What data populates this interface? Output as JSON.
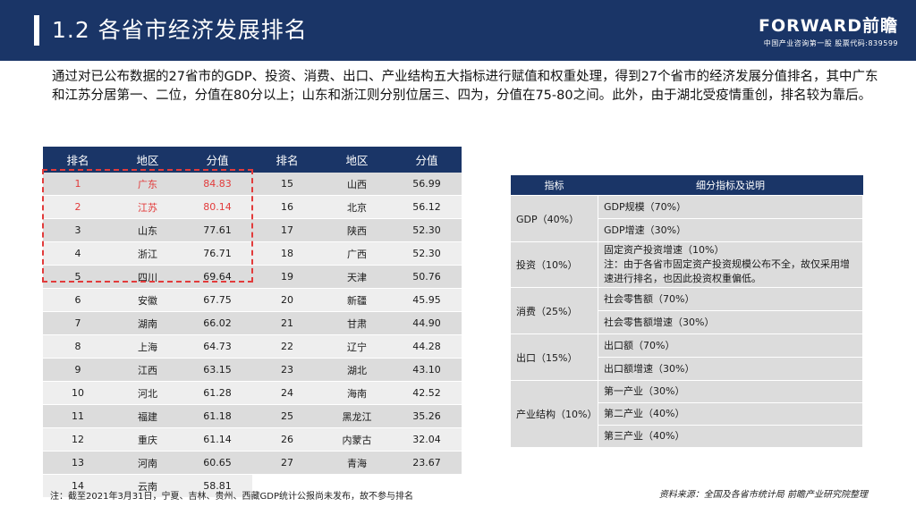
{
  "header": {
    "title": "1.2  各省市经济发展排名",
    "logo_main": "FORWARD前瞻",
    "logo_sub": "中国产业咨询第一股  股票代码:839599"
  },
  "intro": "通过对已公布数据的27省市的GDP、投资、消费、出口、产业结构五大指标进行赋值和权重处理，得到27个省市的经济发展分值排名，其中广东和江苏分居第一、二位，分值在80分以上；山东和浙江则分别位居三、四为，分值在75-80之间。此外，由于湖北受疫情重创，排名较为靠后。",
  "ranking": {
    "headers": [
      "排名",
      "地区",
      "分值",
      "排名",
      "地区",
      "分值"
    ],
    "rows": [
      [
        "1",
        "广东",
        "84.83",
        "15",
        "山西",
        "56.99"
      ],
      [
        "2",
        "江苏",
        "80.14",
        "16",
        "北京",
        "56.12"
      ],
      [
        "3",
        "山东",
        "77.61",
        "17",
        "陕西",
        "52.30"
      ],
      [
        "4",
        "浙江",
        "76.71",
        "18",
        "广西",
        "52.30"
      ],
      [
        "5",
        "四川",
        "69.64",
        "19",
        "天津",
        "50.76"
      ],
      [
        "6",
        "安徽",
        "67.75",
        "20",
        "新疆",
        "45.95"
      ],
      [
        "7",
        "湖南",
        "66.02",
        "21",
        "甘肃",
        "44.90"
      ],
      [
        "8",
        "上海",
        "64.73",
        "22",
        "辽宁",
        "44.28"
      ],
      [
        "9",
        "江西",
        "63.15",
        "23",
        "湖北",
        "43.10"
      ],
      [
        "10",
        "河北",
        "61.28",
        "24",
        "海南",
        "42.52"
      ],
      [
        "11",
        "福建",
        "61.18",
        "25",
        "黑龙江",
        "35.26"
      ],
      [
        "12",
        "重庆",
        "61.14",
        "26",
        "内蒙古",
        "32.04"
      ],
      [
        "13",
        "河南",
        "60.65",
        "27",
        "青海",
        "23.67"
      ],
      [
        "14",
        "云南",
        "58.81",
        "",
        "",
        ""
      ]
    ]
  },
  "indicators": {
    "headers": [
      "指标",
      "细分指标及说明"
    ],
    "gdp": {
      "cat": "GDP（40%）",
      "d1": "GDP规模（70%）",
      "d2": "GDP增速（30%）"
    },
    "invest": {
      "cat": "投资（10%）",
      "d1": "固定资产投资增速（10%）",
      "d2": "注：由于各省市固定资产投资规模公布不全，故仅采用增速进行排名，也因此投资权重偏低。"
    },
    "consume": {
      "cat": "消费（25%）",
      "d1": "社会零售额（70%）",
      "d2": "社会零售额增速（30%）"
    },
    "export": {
      "cat": "出口（15%）",
      "d1": "出口额（70%）",
      "d2": "出口额增速（30%）"
    },
    "industry": {
      "cat": "产业结构（10%）",
      "d1": "第一产业（30%）",
      "d2": "第二产业（40%）",
      "d3": "第三产业（40%）"
    }
  },
  "footer": {
    "note": "注：截至2021年3月31日，宁夏、吉林、贵州、西藏GDP统计公报尚未发布，故不参与排名",
    "source": "资料来源：全国及各省市统计局 前瞻产业研究院整理"
  },
  "colors": {
    "navy": "#1a3567",
    "highlight": "#e23b3b"
  }
}
